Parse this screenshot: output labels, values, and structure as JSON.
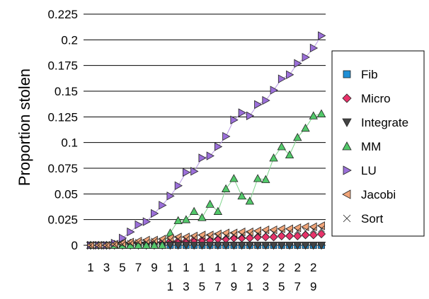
{
  "chart_data": {
    "type": "line",
    "title": "",
    "ylabel": "Proportion stolen",
    "xlabel": "",
    "x": [
      1,
      2,
      3,
      4,
      5,
      6,
      7,
      8,
      9,
      10,
      11,
      12,
      13,
      14,
      15,
      16,
      17,
      18,
      19,
      20,
      21,
      22,
      23,
      24,
      25,
      26,
      27,
      28,
      29,
      30
    ],
    "x_tick_labels": [
      {
        "value": 1,
        "label": "1"
      },
      {
        "value": 3,
        "label": "3"
      },
      {
        "value": 5,
        "label": "5"
      },
      {
        "value": 7,
        "label": "7"
      },
      {
        "value": 9,
        "label": "9"
      },
      {
        "value": 11,
        "label": "11"
      },
      {
        "value": 13,
        "label": "13"
      },
      {
        "value": 15,
        "label": "15"
      },
      {
        "value": 17,
        "label": "17"
      },
      {
        "value": 19,
        "label": "19"
      },
      {
        "value": 21,
        "label": "21"
      },
      {
        "value": 23,
        "label": "23"
      },
      {
        "value": 25,
        "label": "25"
      },
      {
        "value": 27,
        "label": "27"
      },
      {
        "value": 29,
        "label": "29"
      }
    ],
    "y_ticks": [
      "0",
      "0.025",
      "0.05",
      "0.075",
      "0.1",
      "0.125",
      "0.15",
      "0.175",
      "0.2",
      "0.225"
    ],
    "ylim": [
      0,
      0.225
    ],
    "grid": true,
    "legend_position": "right",
    "series": [
      {
        "name": "Fib",
        "marker": "square",
        "color": "#1f8fd6",
        "line": false,
        "values": [
          0,
          0,
          0,
          0,
          0,
          0,
          0,
          0,
          0,
          0,
          0,
          0,
          0,
          0,
          0,
          0,
          0,
          0,
          0,
          0,
          0,
          0,
          0,
          0,
          0,
          0,
          0,
          0,
          0,
          0
        ]
      },
      {
        "name": "Micro",
        "marker": "diamond",
        "color": "#e8336a",
        "line": false,
        "values": [
          0,
          0,
          0,
          0.001,
          0.001,
          0.002,
          0.002,
          0.002,
          0.003,
          0.003,
          0.004,
          0.004,
          0.004,
          0.005,
          0.005,
          0.005,
          0.006,
          0.006,
          0.007,
          0.007,
          0.007,
          0.008,
          0.008,
          0.008,
          0.009,
          0.009,
          0.009,
          0.01,
          0.01,
          0.011
        ]
      },
      {
        "name": "Integrate",
        "marker": "triangle-down",
        "color": "#444444",
        "line": false,
        "values": [
          0,
          0,
          0,
          0,
          0,
          0,
          0,
          0,
          0,
          0,
          0,
          0,
          0,
          0,
          0,
          0,
          0,
          0,
          0,
          0,
          0,
          0,
          0,
          0,
          0,
          0,
          0,
          0,
          0,
          0
        ]
      },
      {
        "name": "MM",
        "marker": "triangle-up",
        "color": "#52c86a",
        "line": true,
        "line_color": "#7fd48c",
        "values": [
          0,
          0,
          0,
          0,
          0,
          0,
          0,
          0,
          0,
          0,
          0.012,
          0.024,
          0.025,
          0.033,
          0.027,
          0.04,
          0.033,
          0.055,
          0.065,
          0.048,
          0.043,
          0.065,
          0.064,
          0.085,
          0.096,
          0.088,
          0.105,
          0.114,
          0.126,
          0.128
        ]
      },
      {
        "name": "LU",
        "marker": "triangle-right",
        "color": "#9b6fd9",
        "line": true,
        "line_color": "#b89ae4",
        "values": [
          0,
          0,
          0,
          0.002,
          0.007,
          0.013,
          0.02,
          0.023,
          0.031,
          0.039,
          0.048,
          0.058,
          0.071,
          0.072,
          0.085,
          0.087,
          0.096,
          0.106,
          0.122,
          0.129,
          0.126,
          0.137,
          0.141,
          0.151,
          0.162,
          0.166,
          0.177,
          0.183,
          0.192,
          0.204
        ]
      },
      {
        "name": "Jacobi",
        "marker": "triangle-left",
        "color": "#f0a478",
        "line": false,
        "values": [
          0,
          0,
          0,
          0.001,
          0.002,
          0.003,
          0.004,
          0.005,
          0.005,
          0.006,
          0.007,
          0.008,
          0.008,
          0.009,
          0.01,
          0.01,
          0.011,
          0.012,
          0.012,
          0.013,
          0.013,
          0.014,
          0.015,
          0.015,
          0.016,
          0.016,
          0.017,
          0.018,
          0.018,
          0.019
        ]
      },
      {
        "name": "Sort",
        "marker": "bowtie",
        "color": "#f3b184",
        "line": false,
        "values": [
          0,
          0,
          0,
          0.001,
          0.001,
          0.002,
          0.003,
          0.003,
          0.004,
          0.004,
          0.005,
          0.006,
          0.006,
          0.007,
          0.007,
          0.008,
          0.009,
          0.009,
          0.01,
          0.01,
          0.011,
          0.011,
          0.012,
          0.012,
          0.013,
          0.013,
          0.014,
          0.014,
          0.015,
          0.016
        ]
      }
    ]
  }
}
